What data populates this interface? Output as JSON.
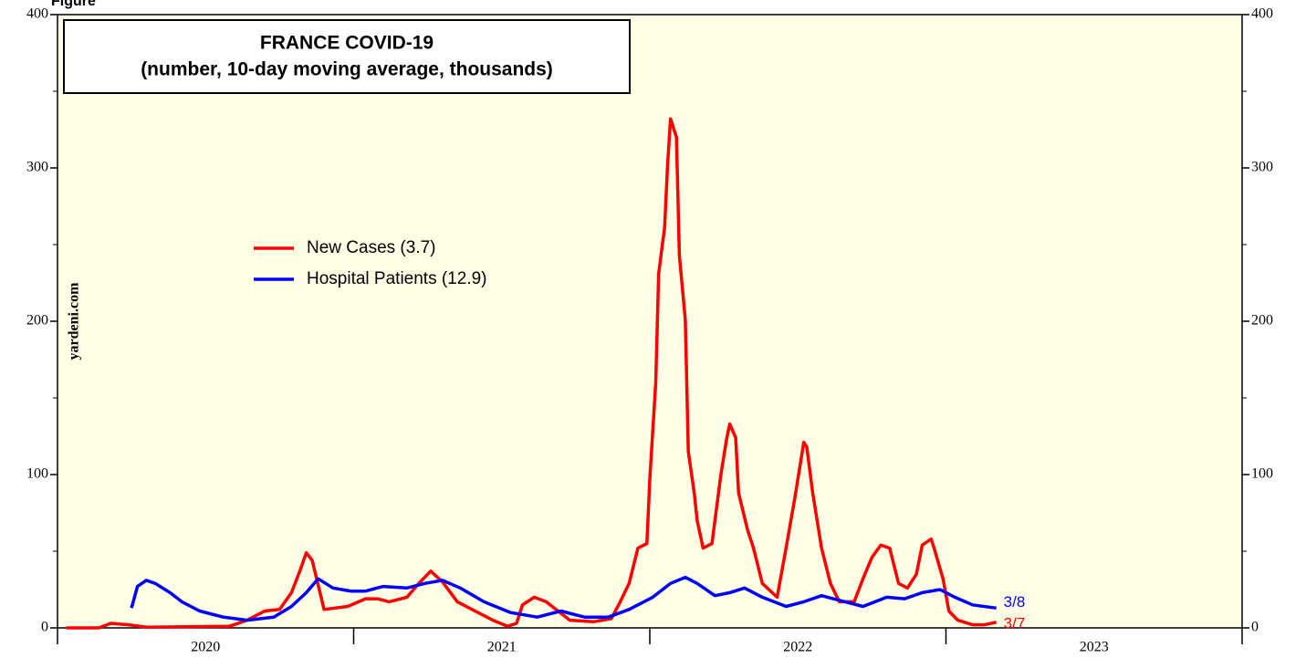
{
  "chart_data": {
    "type": "line",
    "figure_label": "Figure",
    "title": "FRANCE COVID-19",
    "subtitle": "(number, 10-day moving average, thousands)",
    "source": "yardeni.com",
    "xlim": [
      2020,
      2024
    ],
    "year_boundaries": [
      2020,
      2021,
      2022,
      2023,
      2024
    ],
    "xticks": [
      {
        "value": 2020.5,
        "label": "2020"
      },
      {
        "value": 2021.5,
        "label": "2021"
      },
      {
        "value": 2022.5,
        "label": "2022"
      },
      {
        "value": 2023.5,
        "label": "2023"
      }
    ],
    "ylim": [
      0,
      400
    ],
    "yticks": [
      0,
      100,
      200,
      300,
      400
    ],
    "minor_yticks": [
      50,
      150,
      250,
      350
    ],
    "background": "#ffffe6",
    "series": [
      {
        "name": "New Cases (3.7)",
        "color": "#ff0000",
        "end_label": "3/7",
        "x": [
          2020.03,
          2020.14,
          2020.18,
          2020.24,
          2020.3,
          2020.58,
          2020.64,
          2020.7,
          2020.75,
          2020.79,
          2020.82,
          2020.84,
          2020.86,
          2020.9,
          2020.98,
          2021.04,
          2021.08,
          2021.12,
          2021.18,
          2021.22,
          2021.26,
          2021.3,
          2021.35,
          2021.41,
          2021.47,
          2021.52,
          2021.55,
          2021.57,
          2021.61,
          2021.65,
          2021.69,
          2021.73,
          2021.81,
          2021.87,
          2021.9,
          2021.93,
          2021.96,
          2021.99,
          2022.0,
          2022.02,
          2022.03,
          2022.05,
          2022.06,
          2022.07,
          2022.09,
          2022.1,
          2022.12,
          2022.13,
          2022.15,
          2022.16,
          2022.18,
          2022.21,
          2022.24,
          2022.26,
          2022.27,
          2022.29,
          2022.3,
          2022.33,
          2022.35,
          2022.38,
          2022.43,
          2022.46,
          2022.49,
          2022.52,
          2022.53,
          2022.55,
          2022.58,
          2022.61,
          2022.64,
          2022.69,
          2022.72,
          2022.75,
          2022.78,
          2022.81,
          2022.84,
          2022.87,
          2022.9,
          2022.92,
          2022.95,
          2022.96,
          2022.99,
          2023.01,
          2023.04,
          2023.09,
          2023.13,
          2023.17
        ],
        "values": [
          0,
          0,
          3,
          2,
          0.5,
          1,
          5,
          11,
          12,
          23,
          38,
          49,
          44,
          12,
          14,
          19,
          19,
          17,
          20,
          29,
          37,
          30,
          17,
          11,
          5,
          1,
          3,
          15,
          20,
          17,
          11,
          5,
          4,
          6,
          17,
          29,
          52,
          55,
          97,
          160,
          231,
          261,
          302,
          332,
          320,
          243,
          201,
          115,
          88,
          70,
          52,
          55,
          100,
          124,
          133,
          124,
          88,
          64,
          52,
          29,
          20,
          52,
          85,
          121,
          118,
          88,
          52,
          29,
          17,
          17,
          32,
          46,
          54,
          52,
          29,
          26,
          35,
          54,
          58,
          52,
          32,
          11,
          5,
          2,
          2,
          3.7
        ]
      },
      {
        "name": "Hospital Patients (12.9)",
        "color": "#0000ff",
        "end_label": "3/8",
        "x": [
          2020.25,
          2020.27,
          2020.3,
          2020.33,
          2020.38,
          2020.42,
          2020.48,
          2020.56,
          2020.64,
          2020.73,
          2020.79,
          2020.84,
          2020.88,
          2020.93,
          2020.99,
          2021.04,
          2021.1,
          2021.18,
          2021.24,
          2021.3,
          2021.36,
          2021.44,
          2021.53,
          2021.62,
          2021.7,
          2021.78,
          2021.86,
          2021.93,
          2022.01,
          2022.07,
          2022.12,
          2022.16,
          2022.22,
          2022.27,
          2022.32,
          2022.38,
          2022.46,
          2022.52,
          2022.58,
          2022.64,
          2022.72,
          2022.8,
          2022.86,
          2022.92,
          2022.98,
          2023.03,
          2023.09,
          2023.17
        ],
        "values": [
          13,
          27,
          31,
          29,
          23,
          17,
          11,
          7,
          5,
          7,
          14,
          23,
          32,
          26,
          24,
          24,
          27,
          26,
          29,
          31,
          26,
          17,
          10,
          7,
          11,
          7,
          7,
          12,
          20,
          29,
          33,
          29,
          21,
          23,
          26,
          20,
          14,
          17,
          21,
          18,
          14,
          20,
          19,
          23,
          25,
          20,
          15,
          12.9
        ]
      }
    ]
  }
}
